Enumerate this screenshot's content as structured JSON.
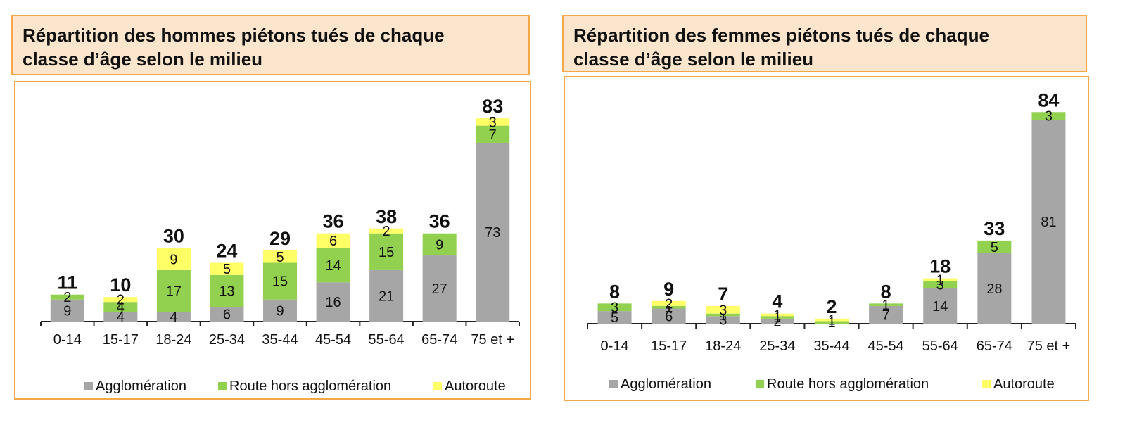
{
  "charts": [
    {
      "title_line1": "Répartition des hommes piétons tués de chaque",
      "title_line2": "classe d’âge selon le milieu"
    },
    {
      "title_line1": "Répartition des femmes piétons tués de chaque",
      "title_line2": "classe d’âge selon le milieu"
    }
  ],
  "colors": {
    "agglomeration": "#a6a6a6",
    "route": "#92d050",
    "autoroute": "#ffff66",
    "panel_border": "#f4a848",
    "title_bg": "#fbe5cc"
  },
  "chart_data": [
    {
      "type": "bar",
      "stacked": true,
      "title": "Répartition des hommes piétons tués de chaque classe d’âge selon le milieu",
      "categories": [
        "0-14",
        "15-17",
        "18-24",
        "25-34",
        "35-44",
        "45-54",
        "55-64",
        "65-74",
        "75 et +"
      ],
      "series": [
        {
          "name": "Agglomération",
          "values": [
            9,
            4,
            4,
            6,
            9,
            16,
            21,
            27,
            73
          ]
        },
        {
          "name": "Route hors agglomération",
          "values": [
            2,
            4,
            17,
            13,
            15,
            14,
            15,
            9,
            7
          ]
        },
        {
          "name": "Autoroute",
          "values": [
            0,
            2,
            9,
            5,
            5,
            6,
            2,
            0,
            3
          ]
        }
      ],
      "totals": [
        11,
        10,
        30,
        24,
        29,
        36,
        38,
        36,
        83
      ],
      "legend_position": "bottom",
      "grid": false
    },
    {
      "type": "bar",
      "stacked": true,
      "title": "Répartition des femmes piétons tués de chaque classe d’âge selon le milieu",
      "categories": [
        "0-14",
        "15-17",
        "18-24",
        "25-34",
        "35-44",
        "45-54",
        "55-64",
        "65-74",
        "75 et +"
      ],
      "series": [
        {
          "name": "Agglomération",
          "values": [
            5,
            6,
            3,
            2,
            0,
            7,
            14,
            28,
            81
          ]
        },
        {
          "name": "Route hors agglomération",
          "values": [
            3,
            1,
            1,
            1,
            1,
            1,
            3,
            5,
            3
          ]
        },
        {
          "name": "Autoroute",
          "values": [
            0,
            2,
            3,
            1,
            1,
            0,
            1,
            0,
            0
          ]
        }
      ],
      "totals": [
        8,
        9,
        7,
        4,
        2,
        8,
        18,
        33,
        84
      ],
      "legend_position": "bottom",
      "grid": false
    }
  ]
}
